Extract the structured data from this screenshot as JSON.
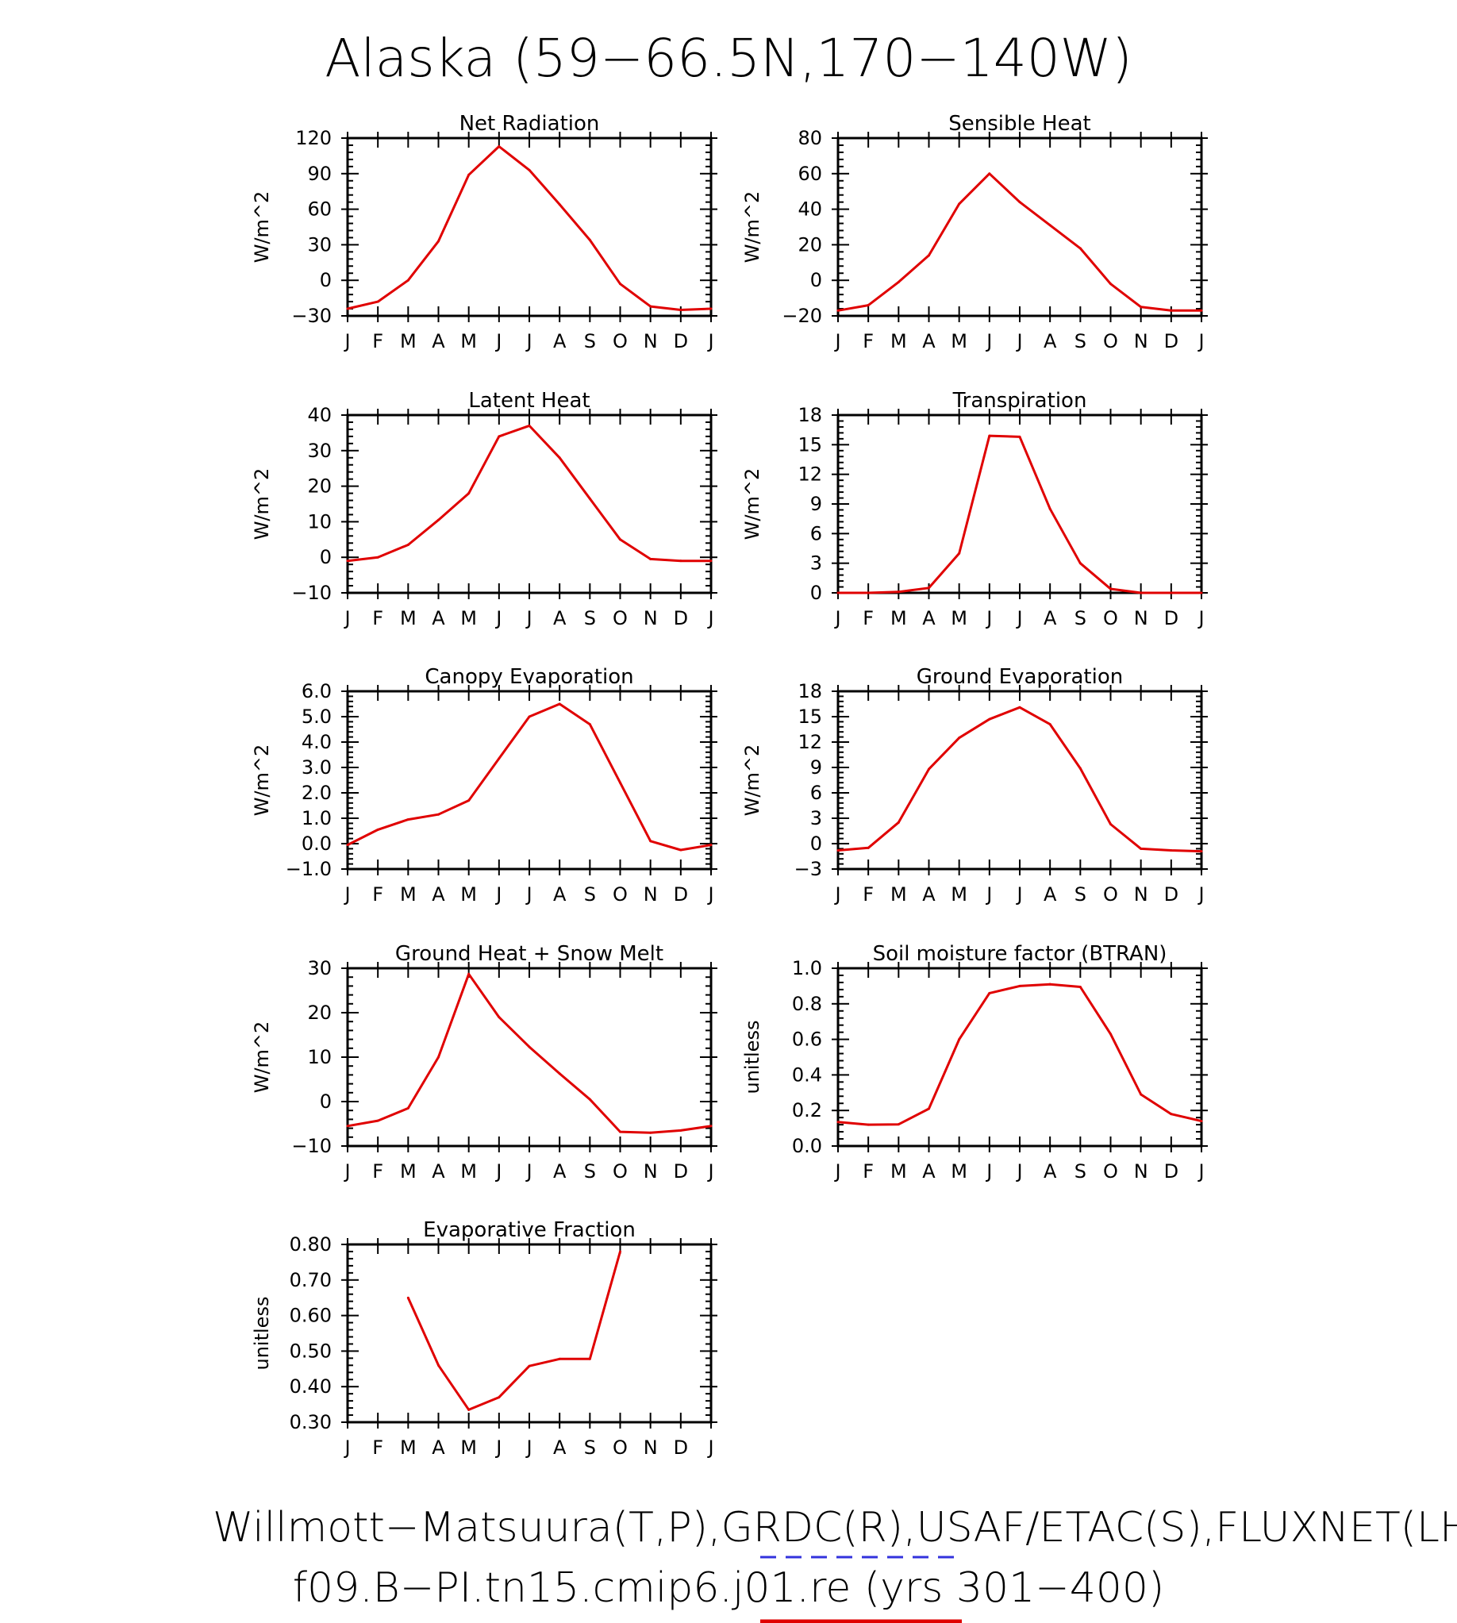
{
  "figure": {
    "title": "Alaska (59−66.5N,170−140W)",
    "footer_line1": "Willmott−Matsuura(T,P),GRDC(R),USAF/ETAC(S),FLUXNET(LHF,GPP)",
    "footer_line2": "f09.B−PI.tn15.cmip6.j01.re (yrs 301−400)",
    "footer_line1_dash_color": "#3333dd",
    "footer_line2_underline_color": "#e00000"
  },
  "months": [
    "J",
    "F",
    "M",
    "A",
    "M",
    "J",
    "J",
    "A",
    "S",
    "O",
    "N",
    "D",
    "J"
  ],
  "line_color": "#e00000",
  "chart_data": [
    {
      "type": "line",
      "title": "Net Radiation",
      "ylabel": "W/m^2",
      "ylim": [
        -30,
        120
      ],
      "yticks": [
        -30,
        0,
        30,
        60,
        90,
        120
      ],
      "ytick_labels": [
        "−30",
        "0",
        "30",
        "60",
        "90",
        "120"
      ],
      "x": [
        1,
        2,
        3,
        4,
        5,
        6,
        7,
        8,
        9,
        10,
        11,
        12,
        13
      ],
      "values": [
        -24,
        -18,
        0,
        33,
        89,
        113,
        93,
        64,
        34,
        -3,
        -22,
        -25,
        -24
      ]
    },
    {
      "type": "line",
      "title": "Sensible Heat",
      "ylabel": "W/m^2",
      "ylim": [
        -20,
        80
      ],
      "yticks": [
        -20,
        0,
        20,
        40,
        60,
        80
      ],
      "ytick_labels": [
        "−20",
        "0",
        "20",
        "40",
        "60",
        "80"
      ],
      "x": [
        1,
        2,
        3,
        4,
        5,
        6,
        7,
        8,
        9,
        10,
        11,
        12,
        13
      ],
      "values": [
        -17,
        -14,
        -1,
        14,
        43,
        60,
        44,
        31,
        18,
        -2,
        -15,
        -17,
        -17
      ]
    },
    {
      "type": "line",
      "title": "Latent Heat",
      "ylabel": "W/m^2",
      "ylim": [
        -10,
        40
      ],
      "yticks": [
        -10,
        0,
        10,
        20,
        30,
        40
      ],
      "ytick_labels": [
        "−10",
        "0",
        "10",
        "20",
        "30",
        "40"
      ],
      "x": [
        1,
        2,
        3,
        4,
        5,
        6,
        7,
        8,
        9,
        10,
        11,
        12,
        13
      ],
      "values": [
        -1,
        0,
        3.5,
        10.5,
        18,
        34,
        37,
        28,
        16.5,
        5,
        -0.5,
        -1,
        -1
      ]
    },
    {
      "type": "line",
      "title": "Transpiration",
      "ylabel": "W/m^2",
      "ylim": [
        0,
        18
      ],
      "yticks": [
        0,
        3,
        6,
        9,
        12,
        15,
        18
      ],
      "ytick_labels": [
        "0",
        "3",
        "6",
        "9",
        "12",
        "15",
        "18"
      ],
      "x": [
        1,
        2,
        3,
        4,
        5,
        6,
        7,
        8,
        9,
        10,
        11,
        12,
        13
      ],
      "values": [
        0,
        0,
        0.1,
        0.5,
        4,
        15.9,
        15.8,
        8.5,
        3,
        0.4,
        0,
        0,
        0
      ]
    },
    {
      "type": "line",
      "title": "Canopy Evaporation",
      "ylabel": "W/m^2",
      "ylim": [
        -1.0,
        6.0
      ],
      "yticks": [
        -1,
        0,
        1,
        2,
        3,
        4,
        5,
        6
      ],
      "ytick_labels": [
        "−1.0",
        "0.0",
        "1.0",
        "2.0",
        "3.0",
        "4.0",
        "5.0",
        "6.0"
      ],
      "x": [
        1,
        2,
        3,
        4,
        5,
        6,
        7,
        8,
        9,
        10,
        11,
        12,
        13
      ],
      "values": [
        -0.05,
        0.55,
        0.95,
        1.15,
        1.7,
        3.35,
        5.0,
        5.5,
        4.7,
        2.4,
        0.1,
        -0.25,
        -0.05
      ]
    },
    {
      "type": "line",
      "title": "Ground Evaporation",
      "ylabel": "W/m^2",
      "ylim": [
        -3,
        18
      ],
      "yticks": [
        -3,
        0,
        3,
        6,
        9,
        12,
        15,
        18
      ],
      "ytick_labels": [
        "−3",
        "0",
        "3",
        "6",
        "9",
        "12",
        "15",
        "18"
      ],
      "x": [
        1,
        2,
        3,
        4,
        5,
        6,
        7,
        8,
        9,
        10,
        11,
        12,
        13
      ],
      "values": [
        -0.8,
        -0.5,
        2.5,
        8.8,
        12.5,
        14.7,
        16.1,
        14.1,
        8.9,
        2.3,
        -0.6,
        -0.8,
        -0.9
      ]
    },
    {
      "type": "line",
      "title": "Ground Heat + Snow Melt",
      "ylabel": "W/m^2",
      "ylim": [
        -10,
        30
      ],
      "yticks": [
        -10,
        0,
        10,
        20,
        30
      ],
      "ytick_labels": [
        "−10",
        "0",
        "10",
        "20",
        "30"
      ],
      "x": [
        1,
        2,
        3,
        4,
        5,
        6,
        7,
        8,
        9,
        10,
        11,
        12,
        13
      ],
      "values": [
        -5.5,
        -4.3,
        -1.5,
        10,
        28.7,
        19,
        12.3,
        6.3,
        0.5,
        -6.8,
        -7,
        -6.5,
        -5.5
      ]
    },
    {
      "type": "line",
      "title": "Soil moisture factor (BTRAN)",
      "ylabel": "unitless",
      "ylim": [
        0.0,
        1.0
      ],
      "yticks": [
        0,
        0.2,
        0.4,
        0.6,
        0.8,
        1.0
      ],
      "ytick_labels": [
        "0.0",
        "0.2",
        "0.4",
        "0.6",
        "0.8",
        "1.0"
      ],
      "x": [
        1,
        2,
        3,
        4,
        5,
        6,
        7,
        8,
        9,
        10,
        11,
        12,
        13
      ],
      "values": [
        0.135,
        0.12,
        0.122,
        0.21,
        0.6,
        0.86,
        0.9,
        0.91,
        0.895,
        0.63,
        0.29,
        0.18,
        0.14
      ]
    },
    {
      "type": "line",
      "title": "Evaporative Fraction",
      "ylabel": "unitless",
      "ylim": [
        0.3,
        0.8
      ],
      "yticks": [
        0.3,
        0.4,
        0.5,
        0.6,
        0.7,
        0.8
      ],
      "ytick_labels": [
        "0.30",
        "0.40",
        "0.50",
        "0.60",
        "0.70",
        "0.80"
      ],
      "x": [
        3,
        4,
        5,
        6,
        7,
        8,
        9,
        10
      ],
      "values": [
        0.65,
        0.46,
        0.335,
        0.37,
        0.458,
        0.478,
        0.478,
        0.78
      ]
    }
  ]
}
